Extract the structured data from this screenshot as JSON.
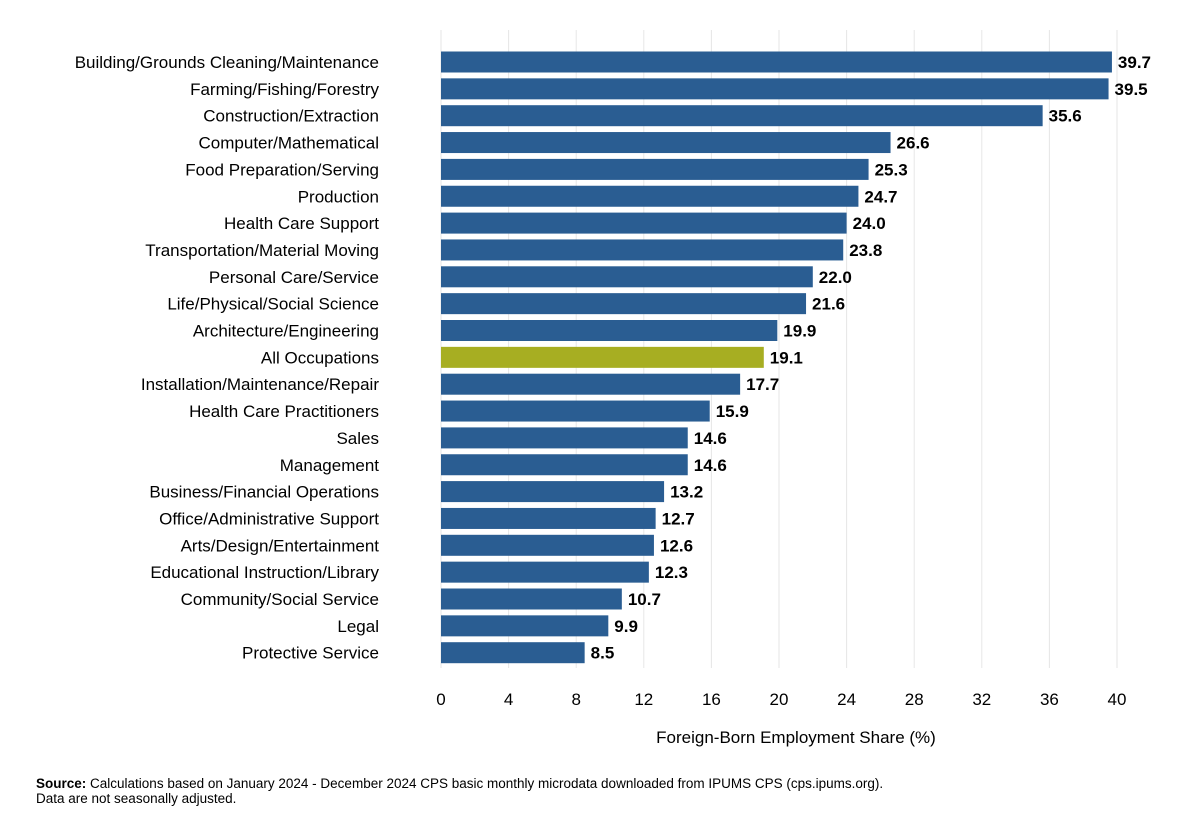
{
  "chart_data": {
    "type": "bar",
    "orientation": "horizontal",
    "categories": [
      "Building/Grounds Cleaning/Maintenance",
      "Farming/Fishing/Forestry",
      "Construction/Extraction",
      "Computer/Mathematical",
      "Food Preparation/Serving",
      "Production",
      "Health Care Support",
      "Transportation/Material Moving",
      "Personal Care/Service",
      "Life/Physical/Social Science",
      "Architecture/Engineering",
      "All Occupations",
      "Installation/Maintenance/Repair",
      "Health Care Practitioners",
      "Sales",
      "Management",
      "Business/Financial Operations",
      "Office/Administrative Support",
      "Arts/Design/Entertainment",
      "Educational Instruction/Library",
      "Community/Social Service",
      "Legal",
      "Protective Service"
    ],
    "values": [
      39.7,
      39.5,
      35.6,
      26.6,
      25.3,
      24.7,
      24.0,
      23.8,
      22.0,
      21.6,
      19.9,
      19.1,
      17.7,
      15.9,
      14.6,
      14.6,
      13.2,
      12.7,
      12.6,
      12.3,
      10.7,
      9.9,
      8.5
    ],
    "value_labels": [
      "39.7",
      "39.5",
      "35.6",
      "26.6",
      "25.3",
      "24.7",
      "24.0",
      "23.8",
      "22.0",
      "21.6",
      "19.9",
      "19.1",
      "17.7",
      "15.9",
      "14.6",
      "14.6",
      "13.2",
      "12.7",
      "12.6",
      "12.3",
      "10.7",
      "9.9",
      "8.5"
    ],
    "highlight_category": "All Occupations",
    "xlabel": "Foreign-Born Employment Share (%)",
    "ylabel": "",
    "xlim": [
      0,
      40
    ],
    "xticks": [
      0,
      4,
      8,
      12,
      16,
      20,
      24,
      28,
      32,
      36,
      40
    ],
    "grid": "vertical",
    "colors": {
      "bar": "#2a5d92",
      "highlight": "#a7ae22"
    }
  },
  "source": {
    "label": "Source:",
    "line1": "Calculations based on January 2024 - December 2024 CPS basic monthly microdata downloaded from IPUMS CPS (cps.ipums.org).",
    "line2": "Data are not seasonally adjusted."
  }
}
